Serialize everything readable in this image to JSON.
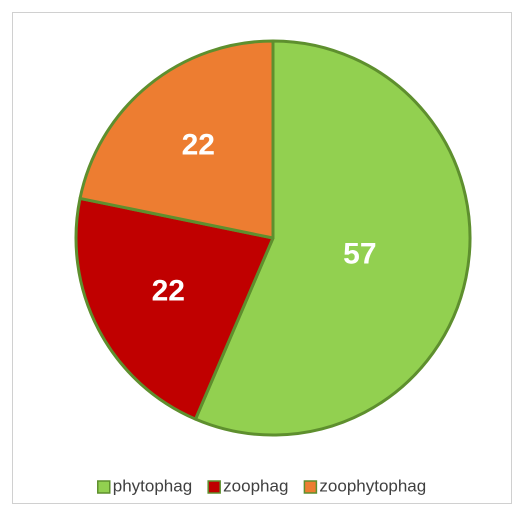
{
  "chart_data": {
    "type": "pie",
    "categories": [
      "phytophag",
      "zoophag",
      "zoophytophag"
    ],
    "values": [
      57,
      22,
      22
    ],
    "colors": [
      "#92d050",
      "#c00000",
      "#ed7d31"
    ],
    "legend": "bottom"
  }
}
